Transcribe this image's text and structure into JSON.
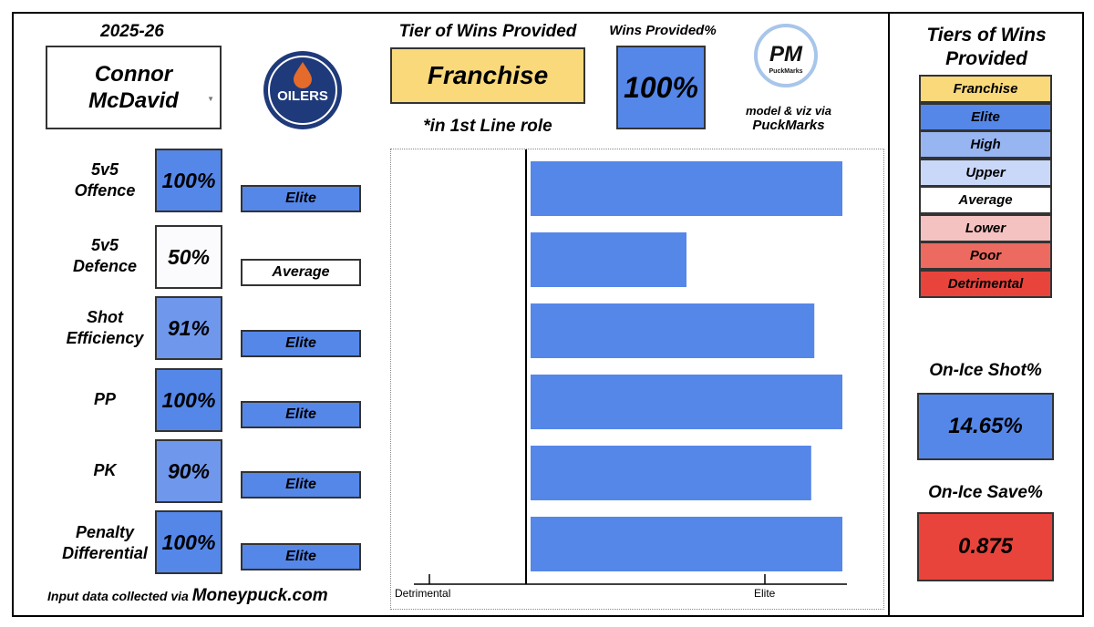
{
  "season": "2025-26",
  "player": {
    "first": "Connor",
    "last": "McDavid"
  },
  "team_logo_text": "OILERS",
  "tier_label": "Tier of Wins Provided",
  "tier_value": "Franchise",
  "role_note": "*in 1st Line role",
  "wins_provided_label": "Wins Provided%",
  "wins_provided_value": "100%",
  "pm_logo": {
    "initials": "PM",
    "name": "PuckMarks"
  },
  "credit_model_line": "model & viz via",
  "credit_model_name": "PuckMarks",
  "credit_input_line": "Input data collected via",
  "credit_input_source": "Moneypuck.com",
  "colors": {
    "franchise": "#f9d97a",
    "elite": "#5587e8",
    "high": "#97b5f1",
    "upper": "#c9d8f8",
    "average": "#ffffff",
    "lower": "#f4c2c0",
    "poor": "#ec6a60",
    "detrimental": "#e9443c"
  },
  "metrics": [
    {
      "name_lines": [
        "5v5",
        "Offence"
      ],
      "pct": "100%",
      "tier": "Elite"
    },
    {
      "name_lines": [
        "5v5",
        "Defence"
      ],
      "pct": "50%",
      "tier": "Average"
    },
    {
      "name_lines": [
        "Shot",
        "Efficiency"
      ],
      "pct": "91%",
      "tier": "Elite"
    },
    {
      "name_lines": [
        "PP"
      ],
      "pct": "100%",
      "tier": "Elite"
    },
    {
      "name_lines": [
        "PK"
      ],
      "pct": "90%",
      "tier": "Elite"
    },
    {
      "name_lines": [
        "Penalty",
        "Differential"
      ],
      "pct": "100%",
      "tier": "Elite"
    }
  ],
  "chart_data": {
    "type": "bar",
    "orientation": "horizontal",
    "categories": [
      "5v5 Offence",
      "5v5 Defence",
      "Shot Efficiency",
      "PP",
      "PK",
      "Penalty Differential"
    ],
    "values": [
      100,
      50,
      91,
      100,
      90,
      100
    ],
    "xlim": [
      0,
      100
    ],
    "tick_labels": [
      "Detrimental",
      "Elite"
    ],
    "bar_color": "#5587e8",
    "grid": false,
    "legend": "none"
  },
  "legend": {
    "title_lines": [
      "Tiers of Wins",
      "Provided"
    ],
    "items": [
      {
        "label": "Franchise",
        "color": "#f9d97a"
      },
      {
        "label": "Elite",
        "color": "#5587e8"
      },
      {
        "label": "High",
        "color": "#97b5f1"
      },
      {
        "label": "Upper",
        "color": "#c9d8f8"
      },
      {
        "label": "Average",
        "color": "#ffffff"
      },
      {
        "label": "Lower",
        "color": "#f4c2c0"
      },
      {
        "label": "Poor",
        "color": "#ec6a60"
      },
      {
        "label": "Detrimental",
        "color": "#e9443c"
      }
    ]
  },
  "on_ice_shot": {
    "label": "On-Ice Shot%",
    "value": "14.65%"
  },
  "on_ice_save": {
    "label": "On-Ice Save%",
    "value": "0.875"
  }
}
